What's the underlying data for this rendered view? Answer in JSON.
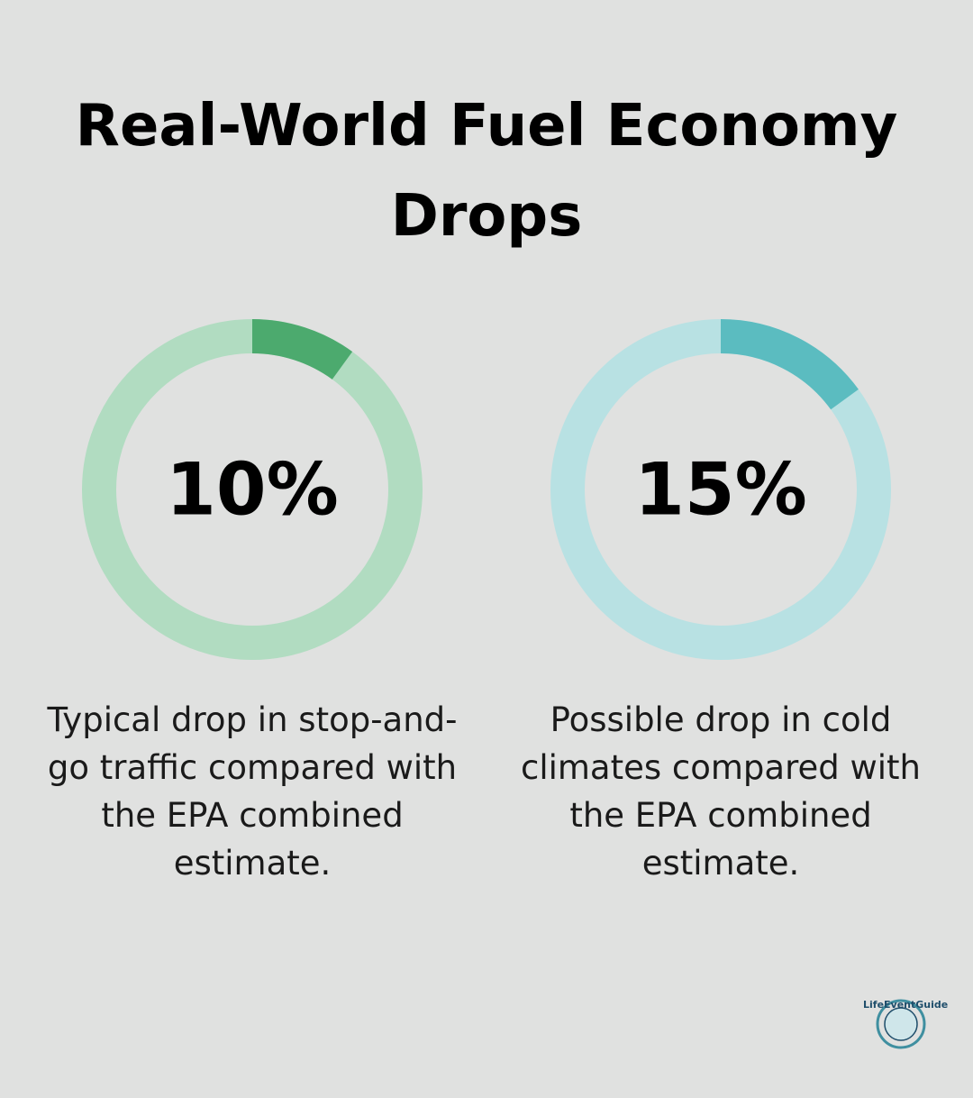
{
  "title": "Real-World Fuel Economy Drops",
  "chart_data": [
    {
      "type": "donut",
      "values": [
        10
      ],
      "value_labels": [
        "10%"
      ],
      "ylim": [
        0,
        100
      ],
      "color": "#4caa6e",
      "track_color": "#b1dcc1",
      "caption": "Typical drop in stop-and-go traffic compared with the EPA combined estimate."
    },
    {
      "type": "donut",
      "values": [
        15
      ],
      "value_labels": [
        "15%"
      ],
      "ylim": [
        0,
        100
      ],
      "color": "#5bbcc0",
      "track_color": "#b8e1e3",
      "caption": "Possible drop in cold climates compared with the EPA combined estimate."
    }
  ],
  "logo": "LifeEventGuide"
}
